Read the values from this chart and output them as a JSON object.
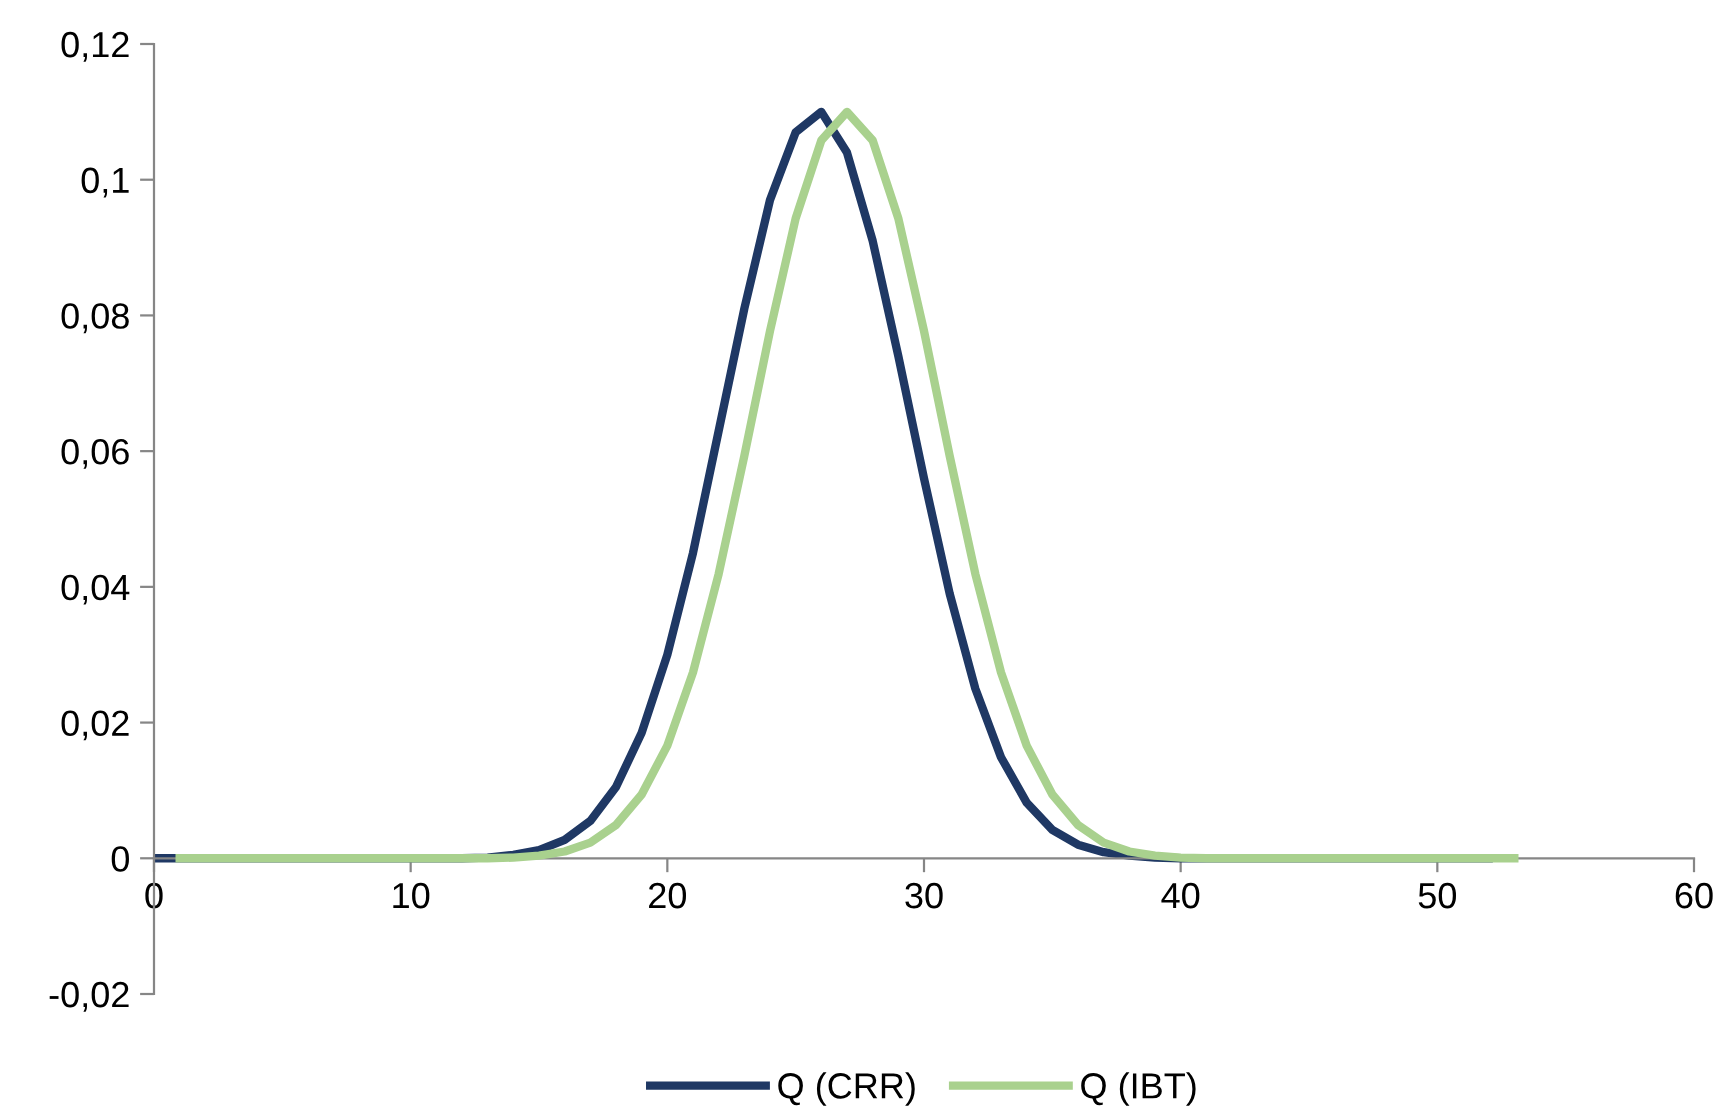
{
  "chart_data": {
    "type": "line",
    "series": [
      {
        "name": "Q (CRR)",
        "color": "#1f3864",
        "x": [
          0,
          5,
          10,
          12,
          13,
          14,
          15,
          16,
          17,
          18,
          19,
          20,
          21,
          22,
          23,
          24,
          25,
          26,
          27,
          28,
          29,
          30,
          31,
          32,
          33,
          34,
          35,
          36,
          37,
          38,
          39,
          40,
          45,
          50,
          52
        ],
        "values": [
          0,
          0,
          0,
          0,
          0.0001,
          0.0005,
          0.0012,
          0.0027,
          0.0055,
          0.0105,
          0.0185,
          0.03,
          0.045,
          0.063,
          0.081,
          0.097,
          0.107,
          0.11,
          0.104,
          0.091,
          0.074,
          0.056,
          0.039,
          0.025,
          0.0149,
          0.0082,
          0.0042,
          0.002,
          0.0009,
          0.0004,
          0.0001,
          0,
          0,
          0,
          0
        ]
      },
      {
        "name": "Q (IBT)",
        "color": "#a9d18e",
        "x": [
          1,
          5,
          10,
          13,
          14,
          15,
          16,
          17,
          18,
          19,
          20,
          21,
          22,
          23,
          24,
          25,
          26,
          27,
          28,
          29,
          30,
          31,
          32,
          33,
          34,
          35,
          36,
          37,
          38,
          39,
          40,
          41,
          45,
          50,
          53
        ],
        "values": [
          0,
          0,
          0,
          0,
          0.0001,
          0.0004,
          0.001,
          0.0023,
          0.0049,
          0.0094,
          0.0166,
          0.0274,
          0.0419,
          0.0593,
          0.0777,
          0.0943,
          0.1058,
          0.11,
          0.1058,
          0.0943,
          0.0777,
          0.0593,
          0.0419,
          0.0274,
          0.0166,
          0.0094,
          0.0049,
          0.0023,
          0.001,
          0.0004,
          0.0001,
          0,
          0,
          0,
          0
        ]
      }
    ],
    "xlim": [
      0,
      60
    ],
    "xticks": [
      0,
      10,
      20,
      30,
      40,
      50,
      60
    ],
    "ylim": [
      -0.02,
      0.12
    ],
    "yticks": [
      {
        "value": -0.02,
        "label": "-0,02"
      },
      {
        "value": 0,
        "label": "0"
      },
      {
        "value": 0.02,
        "label": "0,02"
      },
      {
        "value": 0.04,
        "label": "0,04"
      },
      {
        "value": 0.06,
        "label": "0,06"
      },
      {
        "value": 0.08,
        "label": "0,08"
      },
      {
        "value": 0.1,
        "label": "0,1"
      },
      {
        "value": 0.12,
        "label": "0,12"
      }
    ],
    "legend": "bottom",
    "grid": false,
    "marker": "none",
    "line_style": "solid"
  }
}
